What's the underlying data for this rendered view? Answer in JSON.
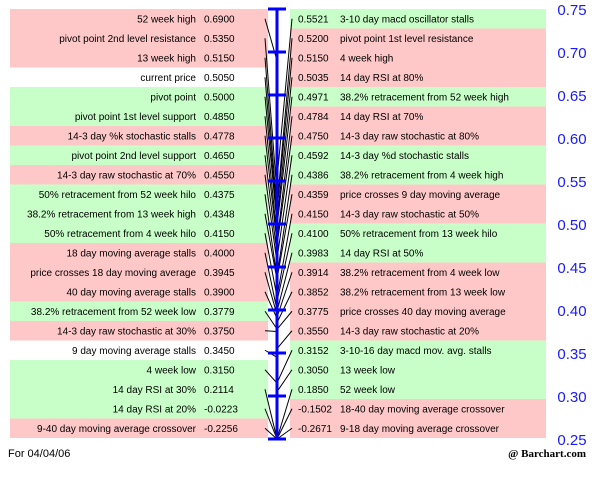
{
  "chart_data": {
    "type": "pivot-ladder",
    "ylim": [
      0.25,
      0.75
    ],
    "axis_ticks": [
      "0.25",
      "0.30",
      "0.35",
      "0.40",
      "0.45",
      "0.50",
      "0.55",
      "0.60",
      "0.65",
      "0.70",
      "0.75"
    ],
    "colors": {
      "resistance": "#ffc8c8",
      "support": "#c8ffc8",
      "axis": "#0000ff",
      "axis_labels": "#1a1aff"
    },
    "left": [
      {
        "label": "52 week high",
        "value": 0.69,
        "display": "0.6900",
        "color": "red"
      },
      {
        "label": "pivot point 2nd level resistance",
        "value": 0.535,
        "display": "0.5350",
        "color": "red"
      },
      {
        "label": "13 week high",
        "value": 0.515,
        "display": "0.5150",
        "color": "red"
      },
      {
        "label": "current price",
        "value": 0.505,
        "display": "0.5050",
        "color": "white"
      },
      {
        "label": "pivot point",
        "value": 0.5,
        "display": "0.5000",
        "color": "green"
      },
      {
        "label": "pivot point 1st level support",
        "value": 0.485,
        "display": "0.4850",
        "color": "green"
      },
      {
        "label": "14-3 day %k stochastic stalls",
        "value": 0.4778,
        "display": "0.4778",
        "color": "red"
      },
      {
        "label": "pivot point 2nd level support",
        "value": 0.465,
        "display": "0.4650",
        "color": "green"
      },
      {
        "label": "14-3 day raw stochastic at 70%",
        "value": 0.455,
        "display": "0.4550",
        "color": "red"
      },
      {
        "label": "50% retracement from 52 week hilo",
        "value": 0.4375,
        "display": "0.4375",
        "color": "green"
      },
      {
        "label": "38.2% retracement from 13 week high",
        "value": 0.4348,
        "display": "0.4348",
        "color": "green"
      },
      {
        "label": "50% retracement from 4 week hilo",
        "value": 0.415,
        "display": "0.4150",
        "color": "green"
      },
      {
        "label": "18 day moving average stalls",
        "value": 0.4,
        "display": "0.4000",
        "color": "red"
      },
      {
        "label": "price crosses 18 day moving average",
        "value": 0.3945,
        "display": "0.3945",
        "color": "red"
      },
      {
        "label": "40 day moving average stalls",
        "value": 0.39,
        "display": "0.3900",
        "color": "red"
      },
      {
        "label": "38.2% retracement from 52 week low",
        "value": 0.3779,
        "display": "0.3779",
        "color": "green"
      },
      {
        "label": "14-3 day raw stochastic at 30%",
        "value": 0.375,
        "display": "0.3750",
        "color": "red"
      },
      {
        "label": "9 day moving average stalls",
        "value": 0.345,
        "display": "0.3450",
        "color": "white"
      },
      {
        "label": "4 week low",
        "value": 0.315,
        "display": "0.3150",
        "color": "green"
      },
      {
        "label": "14 day RSI at 30%",
        "value": 0.2114,
        "display": "0.2114",
        "color": "green"
      },
      {
        "label": "14 day RSI at 20%",
        "value": -0.0223,
        "display": "-0.0223",
        "color": "green"
      },
      {
        "label": "9-40 day moving average crossover",
        "value": -0.2256,
        "display": "-0.2256",
        "color": "red"
      }
    ],
    "right": [
      {
        "label": "3-10 day macd oscillator stalls",
        "value": 0.5521,
        "display": "0.5521",
        "color": "green"
      },
      {
        "label": "pivot point 1st level resistance",
        "value": 0.52,
        "display": "0.5200",
        "color": "red"
      },
      {
        "label": "4 week high",
        "value": 0.515,
        "display": "0.5150",
        "color": "red"
      },
      {
        "label": "14 day RSI at 80%",
        "value": 0.5035,
        "display": "0.5035",
        "color": "red"
      },
      {
        "label": "38.2% retracement from 52 week high",
        "value": 0.4971,
        "display": "0.4971",
        "color": "green"
      },
      {
        "label": "14 day RSI at 70%",
        "value": 0.4784,
        "display": "0.4784",
        "color": "red"
      },
      {
        "label": "14-3 day raw stochastic at 80%",
        "value": 0.475,
        "display": "0.4750",
        "color": "red"
      },
      {
        "label": "14-3 day %d stochastic stalls",
        "value": 0.4592,
        "display": "0.4592",
        "color": "green"
      },
      {
        "label": "38.2% retracement from 4 week high",
        "value": 0.4386,
        "display": "0.4386",
        "color": "green"
      },
      {
        "label": "price crosses 9 day moving average",
        "value": 0.4359,
        "display": "0.4359",
        "color": "red"
      },
      {
        "label": "14-3 day raw stochastic at 50%",
        "value": 0.415,
        "display": "0.4150",
        "color": "red"
      },
      {
        "label": "50% retracement from 13 week hilo",
        "value": 0.41,
        "display": "0.4100",
        "color": "green"
      },
      {
        "label": "14 day RSI at 50%",
        "value": 0.3983,
        "display": "0.3983",
        "color": "green"
      },
      {
        "label": "38.2% retracement from 4 week low",
        "value": 0.3914,
        "display": "0.3914",
        "color": "red"
      },
      {
        "label": "38.2% retracement from 13 week low",
        "value": 0.3852,
        "display": "0.3852",
        "color": "red"
      },
      {
        "label": "price crosses 40 day moving average",
        "value": 0.3775,
        "display": "0.3775",
        "color": "red"
      },
      {
        "label": "14-3 day raw stochastic at 20%",
        "value": 0.355,
        "display": "0.3550",
        "color": "red"
      },
      {
        "label": "3-10-16 day macd mov. avg. stalls",
        "value": 0.3152,
        "display": "0.3152",
        "color": "green"
      },
      {
        "label": "13 week low",
        "value": 0.305,
        "display": "0.3050",
        "color": "green"
      },
      {
        "label": "52 week low",
        "value": 0.185,
        "display": "0.1850",
        "color": "green"
      },
      {
        "label": "18-40 day moving average crossover",
        "value": -0.1502,
        "display": "-0.1502",
        "color": "red"
      },
      {
        "label": "9-18 day moving average crossover",
        "value": -0.2671,
        "display": "-0.2671",
        "color": "red"
      }
    ]
  },
  "footer": {
    "date_label": "For 04/04/06",
    "credit": "@ Barchart.com"
  }
}
